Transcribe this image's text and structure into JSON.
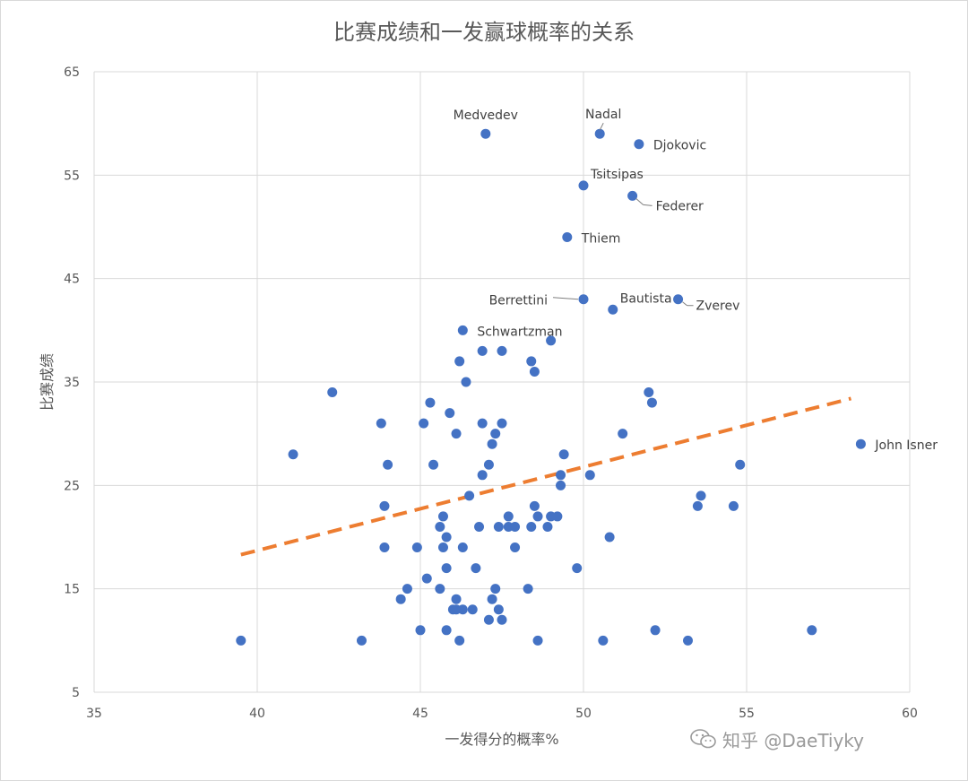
{
  "chart_data": {
    "type": "scatter",
    "title": "比赛成绩和一发赢球概率的关系",
    "xlabel": "一发得分的概率%",
    "ylabel": "比赛成绩",
    "xlim": [
      35,
      60
    ],
    "ylim": [
      5,
      65
    ],
    "xticks": [
      35,
      40,
      45,
      50,
      55,
      60
    ],
    "yticks": [
      5,
      15,
      25,
      35,
      45,
      55,
      65
    ],
    "grid": true,
    "legend": "none",
    "series": [
      {
        "color": "#4472c4",
        "points": [
          [
            47.0,
            59
          ],
          [
            50.5,
            59
          ],
          [
            51.7,
            58
          ],
          [
            50.0,
            54
          ],
          [
            51.5,
            53
          ],
          [
            49.5,
            49
          ],
          [
            50.0,
            43
          ],
          [
            50.9,
            42
          ],
          [
            52.9,
            43
          ],
          [
            46.3,
            40
          ],
          [
            49.0,
            39
          ],
          [
            46.9,
            38
          ],
          [
            47.5,
            38
          ],
          [
            46.2,
            37
          ],
          [
            48.4,
            37
          ],
          [
            48.5,
            36
          ],
          [
            46.4,
            35
          ],
          [
            42.3,
            34
          ],
          [
            45.3,
            33
          ],
          [
            52.0,
            34
          ],
          [
            52.1,
            33
          ],
          [
            43.8,
            31
          ],
          [
            45.1,
            31
          ],
          [
            45.9,
            32
          ],
          [
            46.9,
            31
          ],
          [
            47.5,
            31
          ],
          [
            46.1,
            30
          ],
          [
            47.3,
            30
          ],
          [
            51.2,
            30
          ],
          [
            47.2,
            29
          ],
          [
            58.5,
            29
          ],
          [
            41.1,
            28
          ],
          [
            49.4,
            28
          ],
          [
            44.0,
            27
          ],
          [
            45.4,
            27
          ],
          [
            47.1,
            27
          ],
          [
            54.8,
            27
          ],
          [
            46.9,
            26
          ],
          [
            49.3,
            26
          ],
          [
            50.2,
            26
          ],
          [
            49.3,
            25
          ],
          [
            46.5,
            24
          ],
          [
            53.6,
            24
          ],
          [
            43.9,
            23
          ],
          [
            48.5,
            23
          ],
          [
            53.5,
            23
          ],
          [
            54.6,
            23
          ],
          [
            45.7,
            22
          ],
          [
            47.7,
            22
          ],
          [
            48.6,
            22
          ],
          [
            49.0,
            22
          ],
          [
            49.2,
            22
          ],
          [
            45.6,
            21
          ],
          [
            46.8,
            21
          ],
          [
            47.4,
            21
          ],
          [
            47.7,
            21
          ],
          [
            47.9,
            21
          ],
          [
            48.4,
            21
          ],
          [
            48.9,
            21
          ],
          [
            45.8,
            20
          ],
          [
            50.8,
            20
          ],
          [
            43.9,
            19
          ],
          [
            44.9,
            19
          ],
          [
            45.7,
            19
          ],
          [
            46.3,
            19
          ],
          [
            47.9,
            19
          ],
          [
            45.8,
            17
          ],
          [
            46.7,
            17
          ],
          [
            49.8,
            17
          ],
          [
            45.2,
            16
          ],
          [
            44.6,
            15
          ],
          [
            45.6,
            15
          ],
          [
            47.3,
            15
          ],
          [
            48.3,
            15
          ],
          [
            44.4,
            14
          ],
          [
            46.1,
            14
          ],
          [
            47.2,
            14
          ],
          [
            46.0,
            13
          ],
          [
            46.1,
            13
          ],
          [
            46.3,
            13
          ],
          [
            46.6,
            13
          ],
          [
            47.4,
            13
          ],
          [
            47.1,
            12
          ],
          [
            47.5,
            12
          ],
          [
            45.0,
            11
          ],
          [
            45.8,
            11
          ],
          [
            52.2,
            11
          ],
          [
            57.0,
            11
          ],
          [
            39.5,
            10
          ],
          [
            43.2,
            10
          ],
          [
            46.2,
            10
          ],
          [
            48.6,
            10
          ],
          [
            50.6,
            10
          ],
          [
            53.2,
            10
          ]
        ]
      },
      {
        "style": "dashed-trendline",
        "color": "#ed7d31",
        "points": [
          [
            39.5,
            18.3
          ],
          [
            58.2,
            33.4
          ]
        ]
      }
    ],
    "annotations": [
      {
        "text": "Medvedev",
        "x": 47.0,
        "y": 59,
        "pos": "above"
      },
      {
        "text": "Nadal",
        "x": 50.5,
        "y": 59,
        "pos": "above-leader"
      },
      {
        "text": "Djokovic",
        "x": 51.7,
        "y": 58,
        "pos": "right"
      },
      {
        "text": "Tsitsipas",
        "x": 50.0,
        "y": 54,
        "pos": "above-right"
      },
      {
        "text": "Federer",
        "x": 51.5,
        "y": 53,
        "pos": "below-right-leader"
      },
      {
        "text": "Thiem",
        "x": 49.5,
        "y": 49,
        "pos": "right"
      },
      {
        "text": "Berrettini",
        "x": 50.0,
        "y": 43,
        "pos": "left-leader"
      },
      {
        "text": "Bautista",
        "x": 50.9,
        "y": 42,
        "pos": "above-right"
      },
      {
        "text": "Zverev",
        "x": 52.9,
        "y": 43,
        "pos": "right-leader"
      },
      {
        "text": "Schwartzman",
        "x": 46.3,
        "y": 40,
        "pos": "right"
      },
      {
        "text": "John Isner",
        "x": 58.5,
        "y": 29,
        "pos": "right"
      }
    ]
  },
  "watermark": {
    "text": "知乎 @DaeTiyky",
    "icon": "wechat-icon"
  }
}
